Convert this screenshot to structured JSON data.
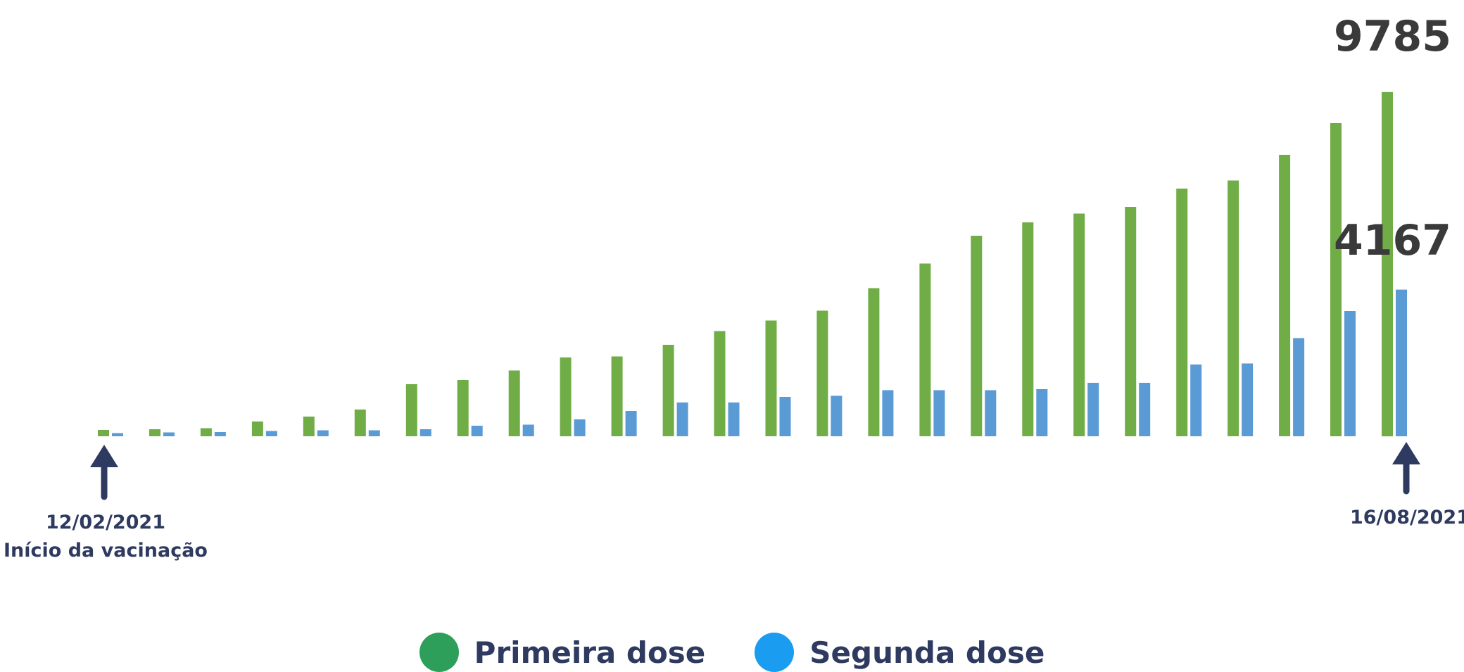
{
  "chart_data": {
    "type": "bar",
    "title": "",
    "xlabel": "",
    "ylabel": "",
    "ylim": [
      0,
      10400
    ],
    "grid": false,
    "legend_position": "bottom-center",
    "series": [
      {
        "name": "Primeira dose",
        "color": "#70ad47",
        "values": [
          180,
          200,
          230,
          420,
          560,
          760,
          1480,
          1600,
          1870,
          2240,
          2270,
          2600,
          2990,
          3290,
          3570,
          4210,
          4910,
          5700,
          6080,
          6330,
          6520,
          7040,
          7270,
          8000,
          8900,
          9785
        ]
      },
      {
        "name": "Segunda dose",
        "color": "#5b9bd5",
        "values": [
          90,
          110,
          120,
          150,
          170,
          170,
          200,
          300,
          330,
          480,
          720,
          960,
          960,
          1120,
          1150,
          1310,
          1310,
          1310,
          1340,
          1520,
          1520,
          2040,
          2070,
          2790,
          3560,
          4167
        ]
      }
    ],
    "data_labels": {
      "primeira_last": "9785",
      "segunda_last": "4167"
    },
    "annotations": {
      "start_date": "12/02/2021",
      "start_note": "Início da vacinação",
      "end_date": "16/08/2021"
    },
    "legend": [
      {
        "label": "Primeira dose",
        "color": "#2e9e5b"
      },
      {
        "label": "Segunda dose",
        "color": "#1a9cf0"
      }
    ]
  }
}
